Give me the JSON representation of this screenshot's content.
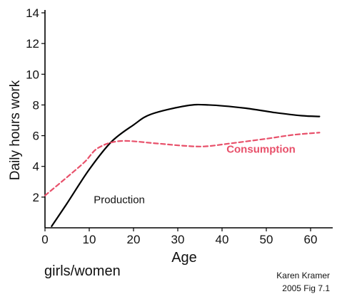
{
  "chart_data": {
    "type": "line",
    "title": "",
    "xlabel": "Age",
    "ylabel": "Daily hours work",
    "xlim": [
      0,
      65
    ],
    "ylim": [
      0,
      14
    ],
    "x_ticks": [
      0,
      10,
      20,
      30,
      40,
      50,
      60
    ],
    "y_ticks": [
      2,
      4,
      6,
      8,
      10,
      12,
      14
    ],
    "grid": false,
    "legend": "none (series labelled inline)",
    "series": [
      {
        "name": "Production",
        "color": "#000000",
        "style": "solid",
        "points": [
          [
            1.5,
            0.1
          ],
          [
            5,
            1.6
          ],
          [
            10,
            3.8
          ],
          [
            15,
            5.6
          ],
          [
            20,
            6.7
          ],
          [
            24,
            7.4
          ],
          [
            32,
            7.95
          ],
          [
            37,
            8.0
          ],
          [
            45,
            7.8
          ],
          [
            52,
            7.5
          ],
          [
            58,
            7.3
          ],
          [
            62,
            7.25
          ]
        ]
      },
      {
        "name": "Consumption",
        "color": "#e8506a",
        "style": "dashed",
        "points": [
          [
            0,
            2.1
          ],
          [
            5,
            3.3
          ],
          [
            9,
            4.3
          ],
          [
            12,
            5.2
          ],
          [
            17,
            5.65
          ],
          [
            25,
            5.5
          ],
          [
            31,
            5.35
          ],
          [
            36,
            5.3
          ],
          [
            42,
            5.5
          ],
          [
            50,
            5.8
          ],
          [
            56,
            6.05
          ],
          [
            62,
            6.2
          ]
        ]
      }
    ],
    "annotations": [
      {
        "text": "Production",
        "x": 11,
        "y": 1.6
      },
      {
        "text": "Consumption",
        "x": 41,
        "y": 4.9
      }
    ]
  },
  "captions": {
    "group_label": "girls/women",
    "credit_line1": "Karen Kramer",
    "credit_line2": "2005 Fig 7.1"
  }
}
